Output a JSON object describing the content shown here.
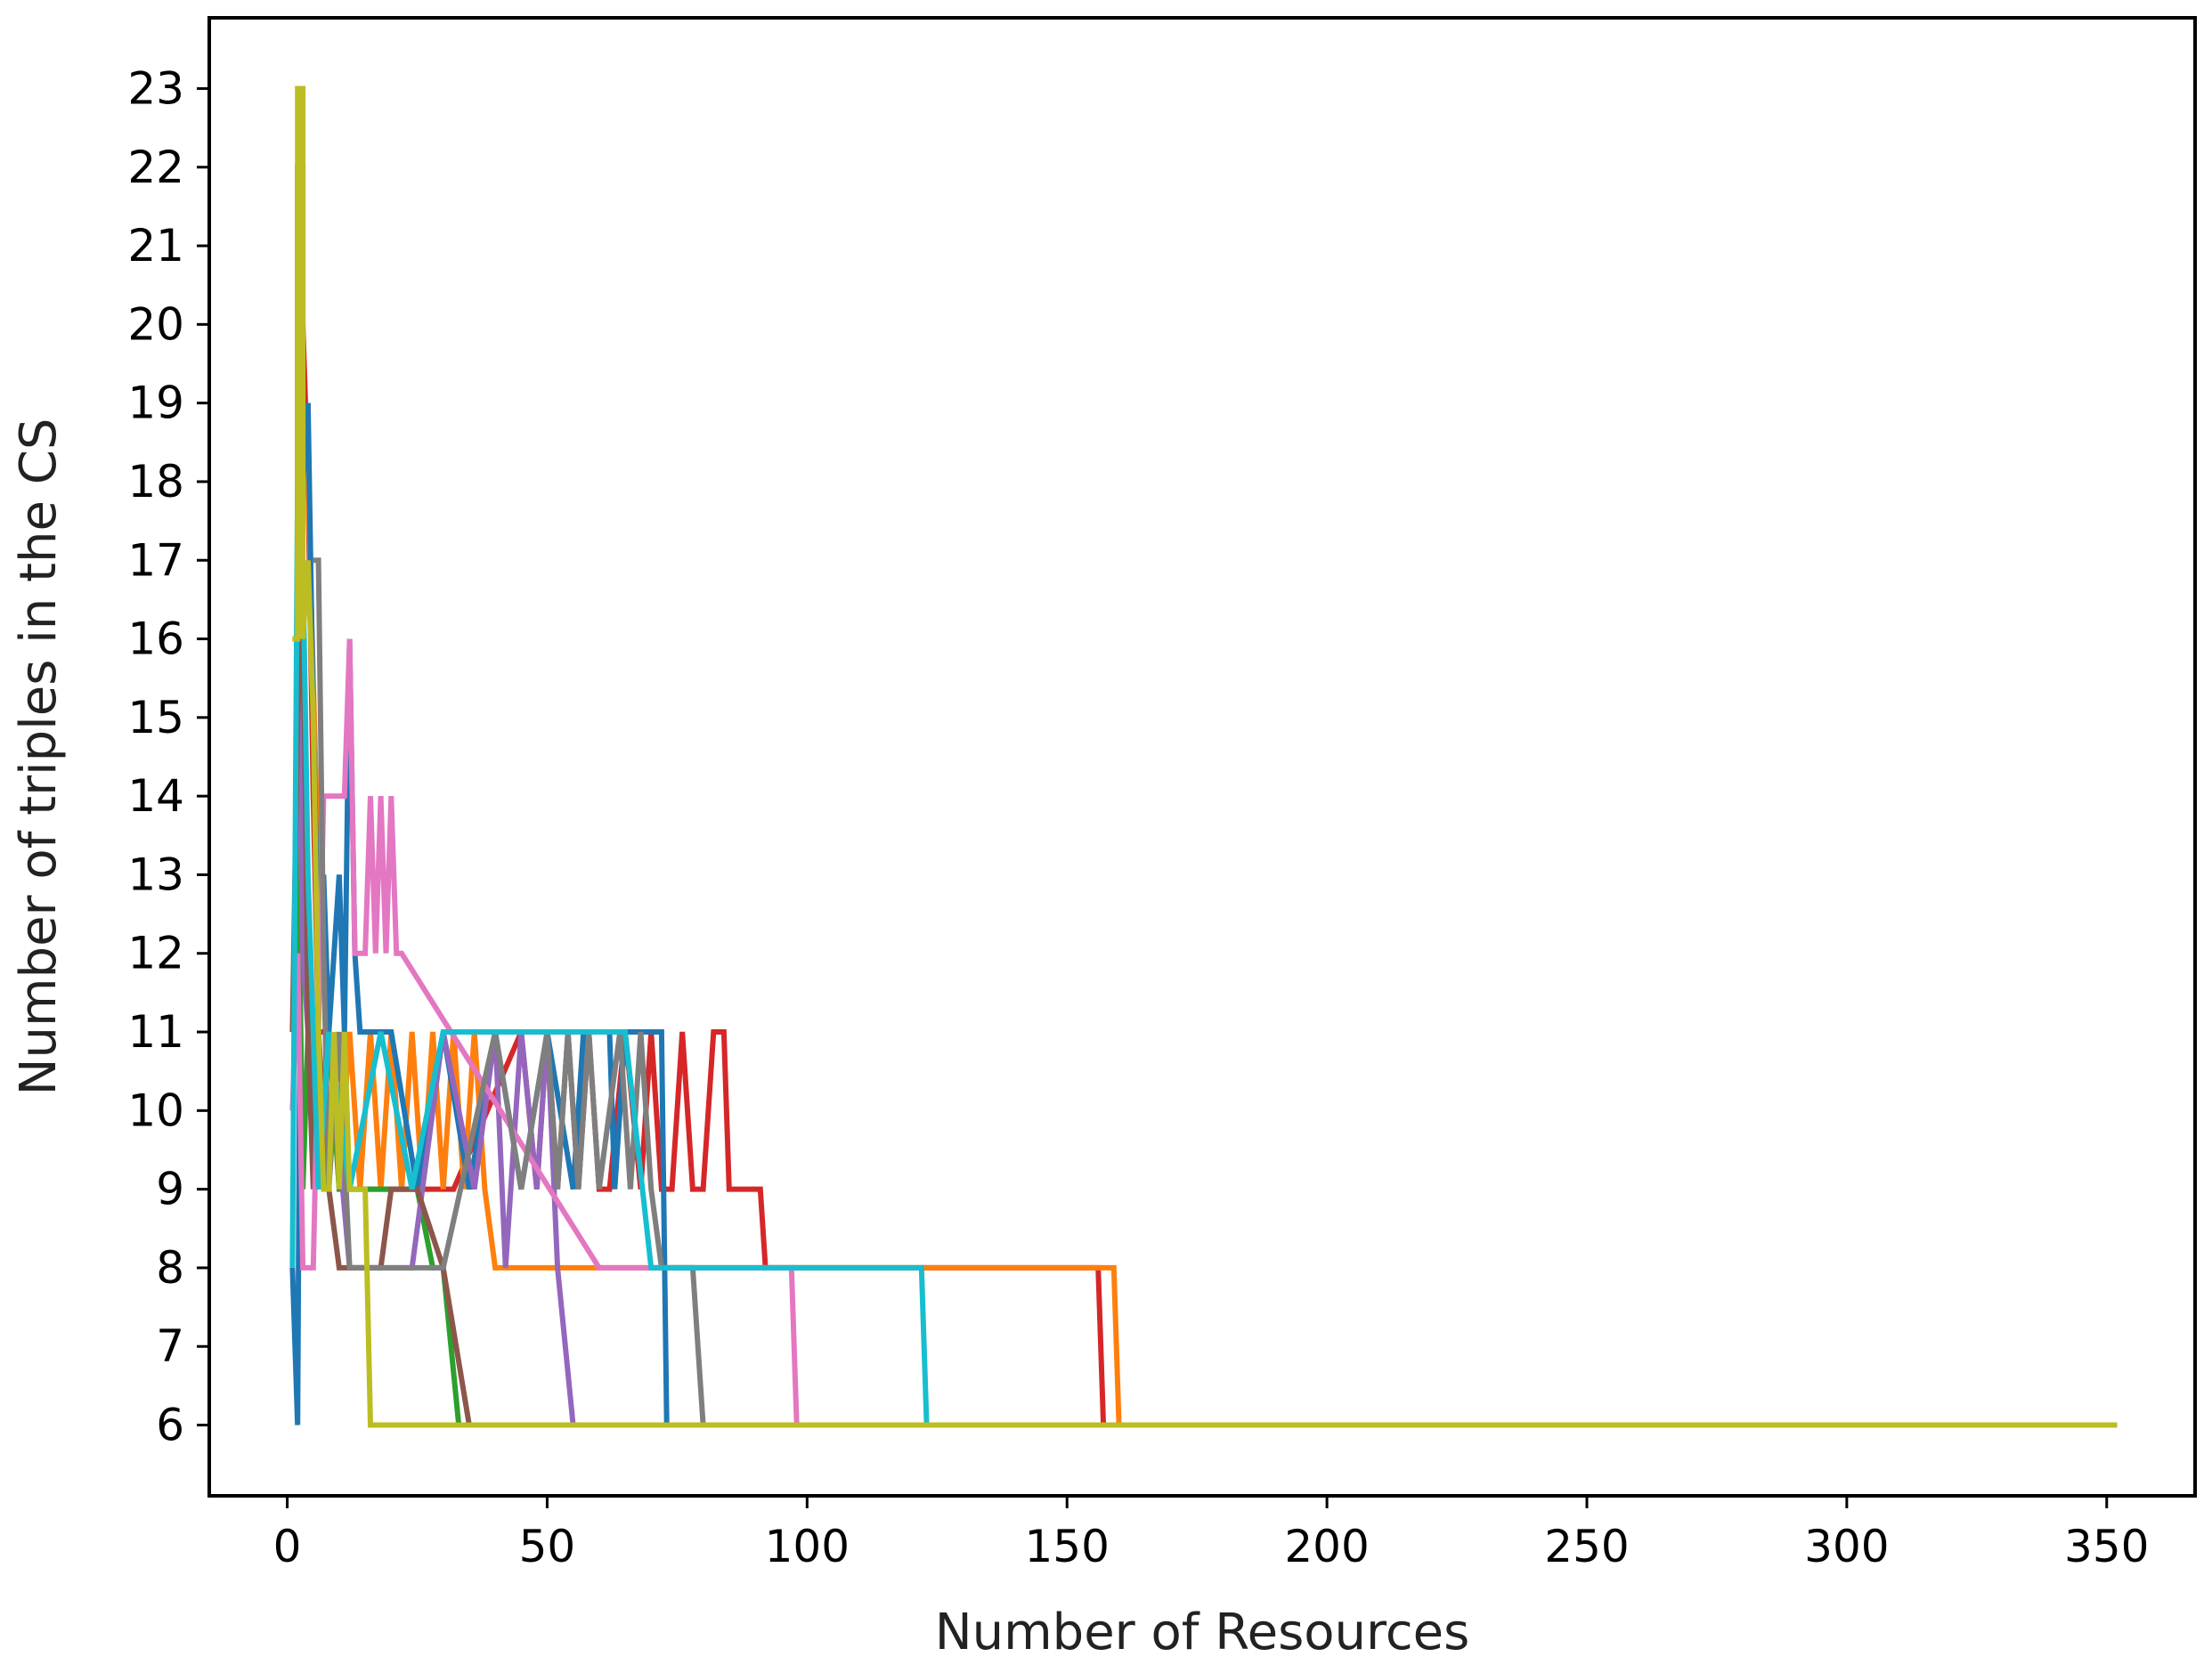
{
  "chart_data": {
    "type": "line",
    "title": "",
    "xlabel": "Number of Resources",
    "ylabel": "Number of triples in the CS",
    "xlim": [
      -15,
      367
    ],
    "ylim": [
      5.1,
      23.9
    ],
    "x_ticks": [
      0,
      50,
      100,
      150,
      200,
      250,
      300,
      350
    ],
    "y_ticks": [
      6,
      7,
      8,
      9,
      10,
      11,
      12,
      13,
      14,
      15,
      16,
      17,
      18,
      19,
      20,
      21,
      22,
      23
    ],
    "grid": false,
    "legend": "none",
    "series": [
      {
        "color": "#d62728",
        "x": [
          2,
          2,
          3,
          3,
          4,
          5,
          6,
          8,
          12,
          20,
          32,
          45,
          48,
          50,
          52,
          54,
          56,
          58,
          60,
          62,
          65,
          68,
          70,
          72,
          74,
          76,
          78,
          80,
          82,
          84,
          85,
          91,
          92,
          128,
          129,
          156,
          157,
          352
        ],
        "y": [
          12,
          22,
          22,
          20,
          18,
          14,
          11,
          11,
          9,
          9,
          9,
          11,
          9,
          11,
          9,
          11,
          9,
          11,
          9,
          9,
          11,
          9,
          11,
          9,
          9,
          11,
          9,
          9,
          11,
          11,
          9,
          9,
          8,
          8,
          8,
          8,
          6,
          6
        ]
      },
      {
        "color": "#ff7f0e",
        "x": [
          2,
          3,
          4,
          6,
          8,
          10,
          12,
          14,
          16,
          18,
          20,
          22,
          24,
          26,
          28,
          30,
          32,
          34,
          36,
          38,
          40,
          60,
          157,
          159,
          160,
          352
        ],
        "y": [
          13,
          19,
          18,
          13,
          11,
          9,
          11,
          9,
          11,
          9,
          11,
          9,
          11,
          9,
          11,
          9,
          11,
          9,
          11,
          9,
          8,
          8,
          8,
          8,
          6,
          6
        ]
      },
      {
        "color": "#1f77b4",
        "x": [
          1,
          1,
          2,
          3,
          4,
          5,
          6,
          7,
          8,
          10,
          11,
          12,
          13,
          14,
          20,
          25,
          30,
          35,
          40,
          45,
          50,
          55,
          57,
          62,
          63,
          65,
          72,
          73,
          352
        ],
        "y": [
          8,
          8,
          6,
          18,
          19,
          15,
          12,
          13,
          11,
          13,
          11,
          16,
          12,
          11,
          11,
          9,
          11,
          9,
          11,
          9,
          11,
          9,
          11,
          11,
          9,
          11,
          11,
          6,
          6
        ]
      },
      {
        "color": "#2ca02c",
        "x": [
          2,
          3,
          4,
          5,
          6,
          8,
          10,
          15,
          20,
          25,
          28,
          30,
          33,
          35,
          352
        ],
        "y": [
          14,
          9,
          11,
          11,
          9,
          11,
          9,
          9,
          9,
          9,
          8,
          8,
          6,
          6,
          6
        ]
      },
      {
        "color": "#9467bd",
        "x": [
          2,
          3,
          4,
          6,
          8,
          12,
          18,
          24,
          30,
          36,
          40,
          42,
          45,
          48,
          50,
          52,
          55,
          352
        ],
        "y": [
          16,
          12,
          11,
          9,
          11,
          8,
          8,
          8,
          11,
          9,
          11,
          8,
          11,
          9,
          11,
          8,
          6,
          6
        ]
      },
      {
        "color": "#8c564b",
        "x": [
          1,
          2,
          3,
          4,
          5,
          6,
          8,
          10,
          12,
          14,
          16,
          18,
          20,
          25,
          30,
          35,
          352
        ],
        "y": [
          11,
          15,
          17,
          11,
          9,
          11,
          9,
          8,
          8,
          8,
          8,
          8,
          9,
          9,
          8,
          6,
          6
        ]
      },
      {
        "color": "#e377c2",
        "x": [
          1,
          2,
          3,
          5,
          7,
          8,
          10,
          11,
          12,
          13,
          14,
          15,
          16,
          17,
          18,
          19,
          20,
          21,
          22,
          60,
          95,
          97,
          98,
          352
        ],
        "y": [
          10,
          12,
          8,
          8,
          14,
          14,
          14,
          14,
          16,
          12,
          12,
          12,
          14,
          12,
          14,
          12,
          14,
          12,
          12,
          8,
          8,
          8,
          6,
          6
        ]
      },
      {
        "color": "#7f7f7f",
        "x": [
          5,
          6,
          7,
          8,
          10,
          12,
          20,
          30,
          40,
          45,
          50,
          52,
          54,
          56,
          58,
          60,
          64,
          66,
          68,
          70,
          72,
          74,
          76,
          78,
          80,
          352
        ],
        "y": [
          17,
          17,
          12,
          9,
          11,
          8,
          8,
          8,
          11,
          9,
          11,
          9,
          11,
          9,
          11,
          9,
          11,
          9,
          11,
          9,
          8,
          8,
          8,
          8,
          6,
          6
        ]
      },
      {
        "color": "#17becf",
        "x": [
          1,
          2,
          3,
          4,
          5,
          6,
          8,
          12,
          18,
          24,
          30,
          40,
          60,
          65,
          70,
          75,
          80,
          90,
          109,
          110,
          112,
          120,
          122,
          123,
          352
        ],
        "y": [
          8,
          18,
          17,
          13,
          11,
          9,
          11,
          9,
          11,
          9,
          11,
          11,
          11,
          11,
          8,
          8,
          8,
          8,
          8,
          8,
          8,
          8,
          8,
          6,
          6
        ]
      },
      {
        "color": "#bcbd22",
        "x": [
          1,
          2,
          2,
          3,
          3,
          4,
          5,
          6,
          7,
          8,
          9,
          10,
          11,
          12,
          14,
          15,
          16,
          352
        ],
        "y": [
          16,
          16,
          23,
          23,
          16,
          17,
          15,
          11,
          9,
          9,
          11,
          9,
          11,
          9,
          9,
          9,
          6,
          6
        ]
      }
    ]
  }
}
